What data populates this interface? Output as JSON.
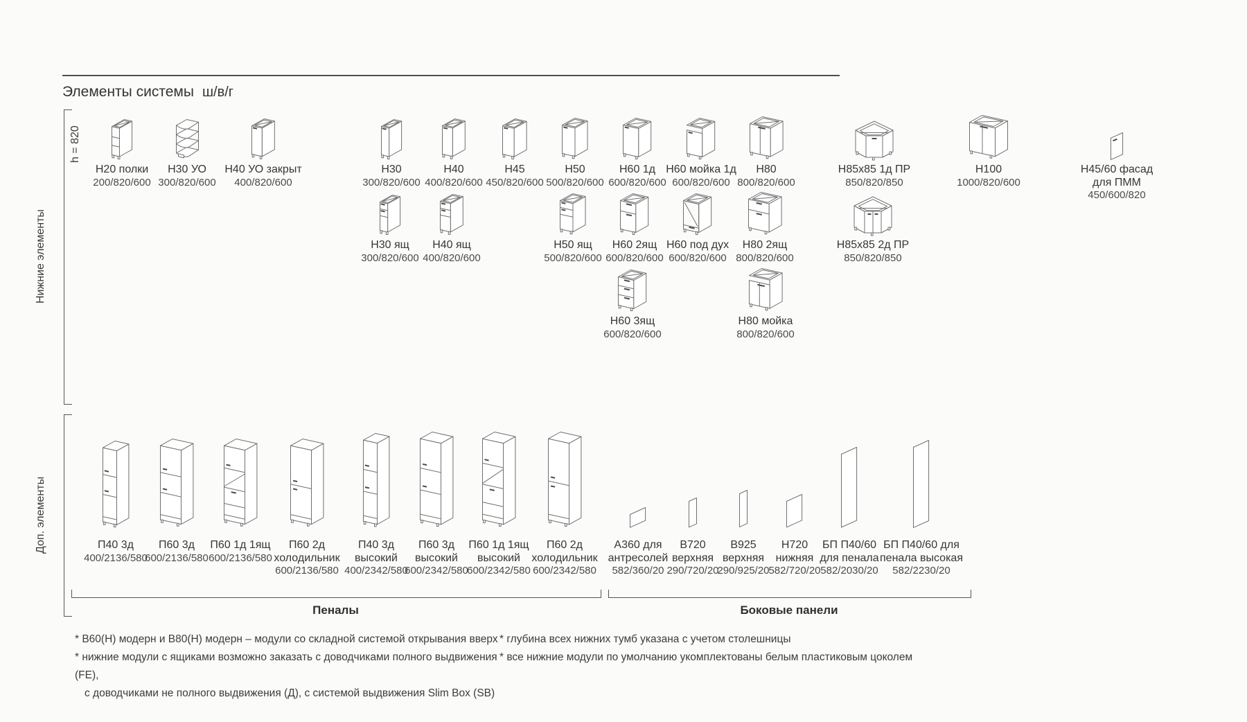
{
  "page": {
    "title": "Элементы системы",
    "units_label": "ш/в/г",
    "height_note": "h = 820"
  },
  "sections": {
    "bottom_elements_label": "Нижние элементы",
    "additional_elements_label": "Доп. элементы",
    "penals_label": "Пеналы",
    "side_panels_label": "Боковые панели"
  },
  "rows": [
    {
      "items": [
        {
          "name": "Н20 полки",
          "dims": "200/820/600",
          "icon": "shelves-open"
        },
        {
          "name": "Н30 УО",
          "dims": "300/820/600",
          "icon": "corner-shelves"
        },
        {
          "name": "Н40 УО закрыт",
          "dims": "400/820/600",
          "icon": "door-1"
        },
        {
          "name": "Н30",
          "dims": "300/820/600",
          "icon": "door-1"
        },
        {
          "name": "Н40",
          "dims": "400/820/600",
          "icon": "door-1"
        },
        {
          "name": "Н45",
          "dims": "450/820/600",
          "icon": "door-1"
        },
        {
          "name": "Н50",
          "dims": "500/820/600",
          "icon": "door-1"
        },
        {
          "name": "Н60 1д",
          "dims": "600/820/600",
          "icon": "door-1"
        },
        {
          "name": "Н60 мойка 1д",
          "dims": "600/820/600",
          "icon": "sink-1-door"
        },
        {
          "name": "Н80",
          "dims": "800/820/600",
          "icon": "door-2"
        },
        {
          "name": "Н85х85 1д ПР",
          "dims": "850/820/850",
          "icon": "corner-1-door"
        },
        {
          "name": "Н100",
          "dims": "1000/820/600",
          "icon": "door-2"
        },
        {
          "name": "Н45/60 фасад",
          "name2": "для ПММ",
          "dims": "450/600/820",
          "icon": "facade-panel"
        }
      ]
    },
    {
      "items": [
        {
          "name": "Н30 ящ",
          "dims": "300/820/600",
          "icon": "drawers-2-door"
        },
        {
          "name": "Н40 ящ",
          "dims": "400/820/600",
          "icon": "drawers-2-door"
        },
        {
          "name": "Н50 ящ",
          "dims": "500/820/600",
          "icon": "drawers-2-door"
        },
        {
          "name": "Н60 2ящ",
          "dims": "600/820/600",
          "icon": "drawers-2"
        },
        {
          "name": "Н60 под дух",
          "dims": "600/820/600",
          "icon": "oven-housing"
        },
        {
          "name": "Н80 2ящ",
          "dims": "800/820/600",
          "icon": "drawers-2"
        },
        {
          "name": "Н85х85 2д ПР",
          "dims": "850/820/850",
          "icon": "corner-2-door"
        }
      ]
    },
    {
      "items": [
        {
          "name": "Н60 3ящ",
          "dims": "600/820/600",
          "icon": "drawers-3"
        },
        {
          "name": "Н80 мойка",
          "dims": "800/820/600",
          "icon": "sink-2-door"
        }
      ]
    },
    {
      "items": [
        {
          "name": "П40 3д",
          "dims": "400/2136/580",
          "icon": "tall-3-door"
        },
        {
          "name": "П60 3д",
          "dims": "600/2136/580",
          "icon": "tall-3-door"
        },
        {
          "name": "П60 1д 1ящ",
          "dims": "600/2136/580",
          "icon": "tall-oven"
        },
        {
          "name": "П60 2д",
          "name2": "холодильник",
          "dims": "600/2136/580",
          "icon": "tall-fridge"
        },
        {
          "name": "П40 3д",
          "name2": "высокий",
          "dims": "400/2342/580",
          "icon": "tall-3-door"
        },
        {
          "name": "П60 3д",
          "name2": "высокий",
          "dims": "600/2342/580",
          "icon": "tall-3-door"
        },
        {
          "name": "П60 1д 1ящ",
          "name2": "высокий",
          "dims": "600/2342/580",
          "icon": "tall-oven"
        },
        {
          "name": "П60 2д",
          "name2": "холодильник",
          "dims": "600/2342/580",
          "icon": "tall-fridge"
        },
        {
          "name": "А360 для",
          "name2": "антресолей",
          "dims": "582/360/20",
          "icon": "side-panel"
        },
        {
          "name": "В720",
          "name2": "верхняя",
          "dims": "290/720/20",
          "icon": "side-panel"
        },
        {
          "name": "В925",
          "name2": "верхняя",
          "dims": "290/925/20",
          "icon": "side-panel"
        },
        {
          "name": "Н720",
          "name2": "нижняя",
          "dims": "582/720/20",
          "icon": "side-panel"
        },
        {
          "name": "БП П40/60",
          "name2": "для пенала",
          "dims": "582/2030/20",
          "icon": "side-panel"
        },
        {
          "name": "БП П40/60 для",
          "name2": "пенала высокая",
          "dims": "582/2230/20",
          "icon": "side-panel"
        }
      ]
    }
  ],
  "footnotes": {
    "left": [
      "* В60(Н) модерн и В80(Н) модерн – модули со складной системой открывания вверх",
      "* нижние модули с ящиками возможно заказать с доводчиками полного выдвижения (FE),",
      "с доводчиками не полного выдвижения (Д), с системой выдвижения Slim Box (SB)"
    ],
    "right": [
      "* глубина всех нижних тумб указана с учетом столешницы",
      "* все нижние модули по умолчанию укомплектованы белым пластиковым цоколем"
    ]
  },
  "colors": {
    "background": "#fbfbfa",
    "text": "#3a3a3a",
    "drawing_stroke": "#707070",
    "bracket": "#555555"
  }
}
